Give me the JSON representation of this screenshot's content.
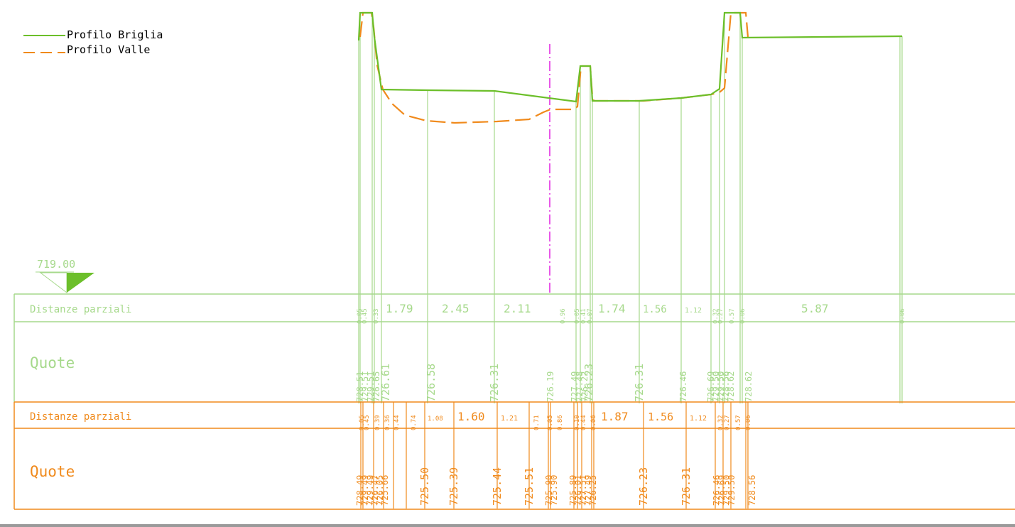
{
  "colors": {
    "briglia": "#6cbf2a",
    "briglia_light": "#a6d98b",
    "valle": "#f08a1c",
    "axis": "#e020e0"
  },
  "legend": {
    "briglia_label": "Profilo Briglia",
    "valle_label": "Profilo Valle"
  },
  "datum": {
    "label": "719.00"
  },
  "briglia_table": {
    "dist_header": "Distanze parziali",
    "quote_header": "Quote",
    "distances": [
      "0.05",
      "0.45",
      "0.33",
      "1.79",
      "2.45",
      "2.11",
      "0.96",
      "0.05",
      "0.41",
      "0.07",
      "1.74",
      "1.56",
      "1.12",
      "0.32",
      "0.27",
      "0.57",
      "0.06",
      "5.87",
      "0.06"
    ],
    "elevations": [
      "728.51",
      "729.51",
      "729.51",
      "726.65",
      "726.61",
      "726.58",
      "726.31",
      "726.19",
      "727.49",
      "727.48",
      "726.22",
      "726.23",
      "726.31",
      "726.46",
      "726.69",
      "729.50",
      "729.50",
      "728.56",
      "728.62",
      "728.62"
    ]
  },
  "valle_table": {
    "dist_header": "Distanze parziali",
    "quote_header": "Quote",
    "distances": [
      "0.05",
      "0.45",
      "0.39",
      "0.36",
      "0.44",
      "0.74",
      "1.08",
      "1.60",
      "1.21",
      "0.71",
      "0.05",
      "0.86",
      "0.10",
      "0.44",
      "0.06",
      "1.87",
      "1.56",
      "1.12",
      "0.32",
      "0.27",
      "0.57",
      "0.06"
    ],
    "elevations": [
      "728.49",
      "729.49",
      "729.49",
      "726.47",
      "726.05",
      "725.66",
      "725.50",
      "725.39",
      "725.44",
      "725.51",
      "725.90",
      "725.90",
      "725.89",
      "726.01",
      "727.51",
      "727.49",
      "726.25",
      "726.23",
      "726.31",
      "726.46",
      "726.69",
      "729.50",
      "729.50",
      "728.56"
    ]
  }
}
